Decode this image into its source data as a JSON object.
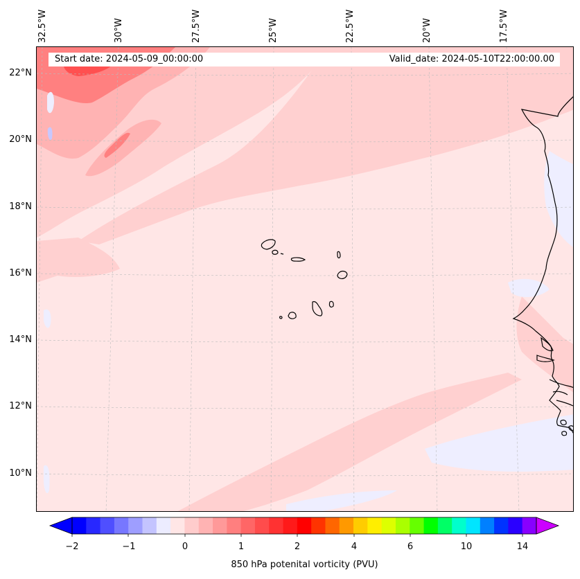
{
  "map": {
    "header": {
      "start_date": "Start date: 2024-05-09_00:00:00",
      "valid_date": "Valid_date: 2024-05-10T22:00:00.00"
    },
    "longitude_labels": [
      "32.5°W",
      "30°W",
      "27.5°W",
      "25°W",
      "22.5°W",
      "20°W",
      "17.5°W"
    ],
    "latitude_labels": [
      "22°N",
      "20°N",
      "18°N",
      "16°N",
      "14°N",
      "12°N",
      "10°N"
    ],
    "colorbar": {
      "label": "850 hPa potenital vorticity (PVU)",
      "tick_labels": [
        "−2",
        "−1",
        "0",
        "1",
        "2",
        "4",
        "6",
        "10",
        "14"
      ],
      "colors": [
        "#0000ff",
        "#2828ff",
        "#4f4fff",
        "#7777ff",
        "#9e9eff",
        "#c4c4ff",
        "#ececff",
        "#ffe6e6",
        "#ffcccc",
        "#ffb3b3",
        "#ff9999",
        "#ff7f7f",
        "#ff6666",
        "#ff4c4c",
        "#ff3232",
        "#ff1a1a",
        "#ff0000",
        "#ff3300",
        "#ff6600",
        "#ff9900",
        "#ffcc00",
        "#ffee00",
        "#ddff00",
        "#aaff00",
        "#66ff00",
        "#00ff00",
        "#00ff66",
        "#00ffcc",
        "#00e5ff",
        "#0080ff",
        "#0033ff",
        "#2a00ff",
        "#8800ff"
      ],
      "under_color": "#0000ff",
      "over_color": "#cc00ff"
    },
    "field_colors": {
      "background": "#ffe6e6",
      "light": "#ffd0d0",
      "medium": "#ffb3b3",
      "strong": "#ff8080",
      "very_strong": "#ff5050",
      "negative_light": "#eeeeff",
      "negative_medium": "#c8c8ff",
      "coastline": "#000000",
      "gridline": "#bbbbbb"
    }
  }
}
